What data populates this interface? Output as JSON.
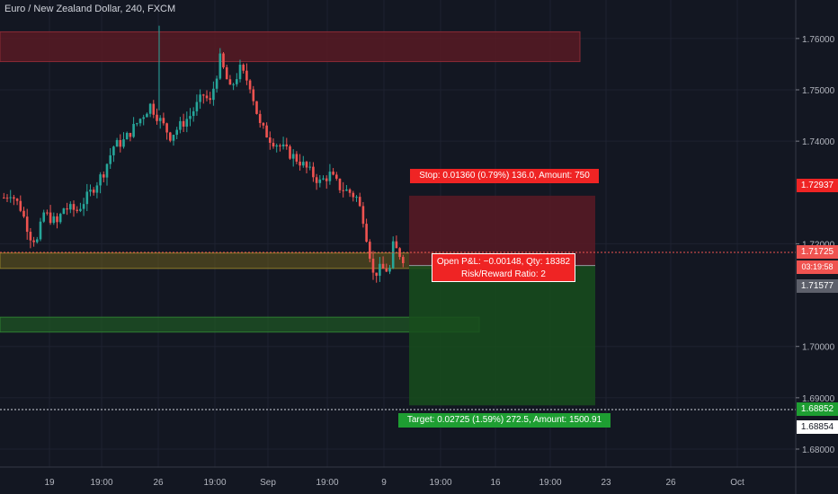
{
  "header": {
    "symbol_title": "Euro / New Zealand Dollar, 240, FXCM"
  },
  "price_axis": {
    "ticks": [
      "1.76000",
      "1.75000",
      "1.74000",
      "1.72000",
      "1.70000",
      "1.69000",
      "1.68000"
    ],
    "tick_values": [
      1.76,
      1.75,
      1.74,
      1.72,
      1.7,
      1.69,
      1.68
    ]
  },
  "time_axis": {
    "labels": [
      "19",
      "19:00",
      "26",
      "19:00",
      "Sep",
      "19:00",
      "9",
      "19:00",
      "16",
      "19:00",
      "23",
      "26",
      "Oct"
    ]
  },
  "price_tags": {
    "stop_level": "1.72937",
    "last_price": "1.71725",
    "countdown": "03:19:58",
    "entry_level": "1.71577",
    "target_level": "1.68852",
    "crosshair_level": "1.68854"
  },
  "position_tool": {
    "stop_label": "Stop: 0.01360 (0.79%) 136.0, Amount: 750",
    "pnl_label": "Open P&L: −0.00148, Qty: 18382",
    "rr_label": "Risk/Reward Ratio: 2",
    "target_label": "Target: 0.02725 (1.59%) 272.5, Amount: 1500.91",
    "entry": 1.71577,
    "stop": 1.72937,
    "target": 1.68852
  },
  "zones": [
    {
      "name": "resistance-zone",
      "low": 1.7555,
      "high": 1.7613
    },
    {
      "name": "mid-zone",
      "low": 1.7152,
      "high": 1.7182
    },
    {
      "name": "support-zone",
      "low": 1.7028,
      "high": 1.7057
    }
  ],
  "colors": {
    "background": "#131722",
    "bull": "#26a69a",
    "bear": "#ef5350",
    "text": "#d1d4dc",
    "stop_zone": "#7a1f2a",
    "target_zone": "#1b5e20",
    "stop_tag": "#ef2424",
    "target_tag": "#1e9e32"
  },
  "chart_data": {
    "type": "candlestick",
    "title": "Euro / New Zealand Dollar, 240, FXCM",
    "ylim": [
      1.6765,
      1.7675
    ],
    "x_labels": [
      "19",
      "19:00",
      "26",
      "19:00",
      "Sep",
      "19:00",
      "9",
      "19:00",
      "16",
      "19:00",
      "23",
      "26",
      "Oct"
    ],
    "path_points": [
      [
        0,
        1.729
      ],
      [
        2,
        1.73
      ],
      [
        5,
        1.727
      ],
      [
        8,
        1.7215
      ],
      [
        10,
        1.7205
      ],
      [
        12,
        1.726
      ],
      [
        16,
        1.724
      ],
      [
        18,
        1.727
      ],
      [
        22,
        1.7265
      ],
      [
        26,
        1.73
      ],
      [
        30,
        1.734
      ],
      [
        33,
        1.739
      ],
      [
        36,
        1.74
      ],
      [
        40,
        1.7435
      ],
      [
        44,
        1.747
      ],
      [
        47,
        1.744
      ],
      [
        50,
        1.741
      ],
      [
        53,
        1.743
      ],
      [
        56,
        1.745
      ],
      [
        60,
        1.749
      ],
      [
        62,
        1.7475
      ],
      [
        65,
        1.756
      ],
      [
        68,
        1.75
      ],
      [
        71,
        1.754
      ],
      [
        74,
        1.751
      ],
      [
        77,
        1.743
      ],
      [
        80,
        1.7405
      ],
      [
        83,
        1.739
      ],
      [
        86,
        1.7375
      ],
      [
        89,
        1.736
      ],
      [
        92,
        1.734
      ],
      [
        95,
        1.732
      ],
      [
        98,
        1.7335
      ],
      [
        101,
        1.731
      ],
      [
        104,
        1.73
      ],
      [
        106,
        1.729
      ],
      [
        108,
        1.725
      ],
      [
        110,
        1.718
      ],
      [
        111,
        1.714
      ],
      [
        113,
        1.715
      ],
      [
        116,
        1.715
      ],
      [
        117,
        1.7195
      ],
      [
        119,
        1.718
      ],
      [
        120,
        1.7172
      ]
    ]
  }
}
